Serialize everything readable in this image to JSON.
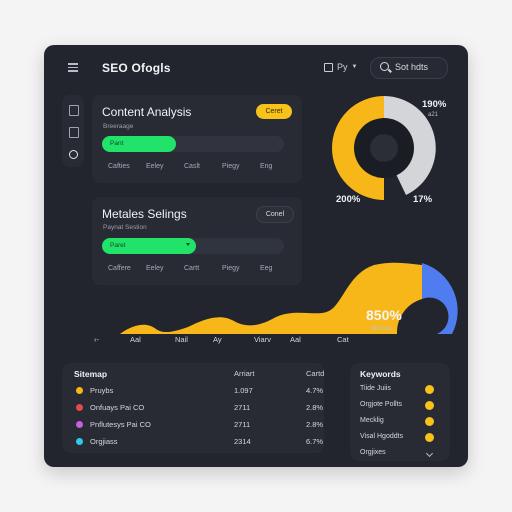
{
  "app": {
    "title": "SEO Ofogls"
  },
  "header": {
    "filter_label": "Py",
    "search_placeholder": "Sot hdts"
  },
  "content_card": {
    "title": "Content Analysis",
    "subtitle": "Breeraage",
    "badge": "Ceret",
    "dropdown_value": "Pant",
    "tabs": [
      "Cafties",
      "Eeley",
      "Caslt",
      "Piegy",
      "Eng"
    ]
  },
  "settings_card": {
    "title": "Metales Selings",
    "subtitle": "Paynat Sestion",
    "badge": "Conel",
    "dropdown_value": "Paret",
    "tabs": [
      "Caffere",
      "Eeley",
      "Cartt",
      "Piegy",
      "Eeg"
    ]
  },
  "donut": {
    "top_value": "190%",
    "top_sub": "a21",
    "left_value": "200%",
    "right_value": "17%",
    "colors": {
      "yellow": "#f7b718",
      "gray": "#d4d5d9",
      "dark": "#1b1d24"
    },
    "segments": [
      {
        "label": "yellow",
        "fraction": 0.55
      },
      {
        "label": "gray",
        "fraction": 0.45
      }
    ]
  },
  "area_chart": {
    "x_labels": [
      "Aal",
      "Nail",
      "Ay",
      "Viarv",
      "Aal",
      "Cat"
    ],
    "value": "850%",
    "value_sub": "Mimuel",
    "colors": {
      "area": "#f7b718",
      "gauge": "#4f7df0"
    }
  },
  "sitemap": {
    "title": "Sitemap",
    "columns": [
      "Arriart",
      "Cartd"
    ],
    "rows": [
      {
        "name": "Pruybs",
        "v1": "1.097",
        "v2": "4.7%",
        "color": "#f7b718"
      },
      {
        "name": "Onfuays Pai CO",
        "v1": "2711",
        "v2": "2.8%",
        "color": "#e44b4b"
      },
      {
        "name": "Pnflutesys Pai CO",
        "v1": "2711",
        "v2": "2.8%",
        "color": "#c85ee0"
      },
      {
        "name": "Orgjiass",
        "v1": "2314",
        "v2": "6.7%",
        "color": "#31c9e8"
      }
    ]
  },
  "keywords": {
    "title": "Keywords",
    "items": [
      "Tiide Juiis",
      "Orgjote Pollts",
      "Mecklig",
      "Visal Hgoddts",
      "Orgjixes"
    ]
  }
}
